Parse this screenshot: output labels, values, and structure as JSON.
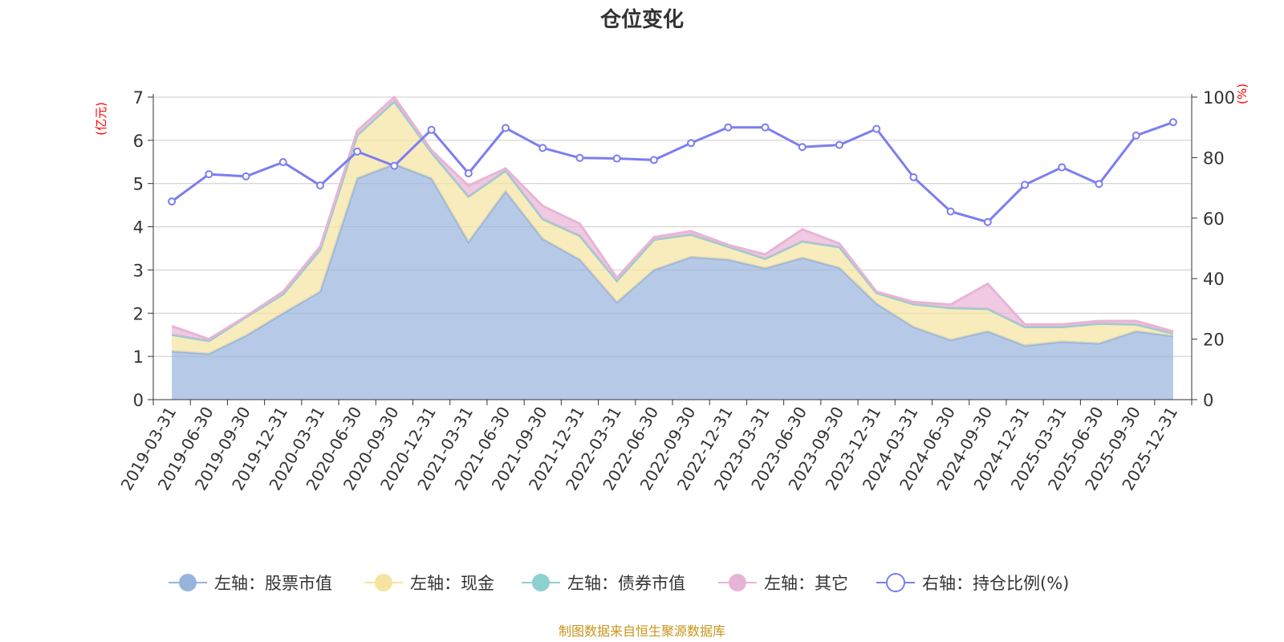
{
  "chart_data": {
    "type": "area",
    "title": "仓位变化",
    "left_axis_unit": "(亿元)",
    "right_axis_unit": "(%)",
    "left_ylim": [
      0,
      7
    ],
    "left_yticks": [
      0,
      1,
      2,
      3,
      4,
      5,
      6,
      7
    ],
    "right_ylim": [
      0,
      100
    ],
    "right_yticks": [
      0,
      20,
      40,
      60,
      80,
      100
    ],
    "categories": [
      "2019-03-31",
      "2019-06-30",
      "2019-09-30",
      "2019-12-31",
      "2020-03-31",
      "2020-06-30",
      "2020-09-30",
      "2020-12-31",
      "2021-03-31",
      "2021-06-30",
      "2021-09-30",
      "2021-12-31",
      "2022-03-31",
      "2022-06-30",
      "2022-09-30",
      "2022-12-31",
      "2023-03-31",
      "2023-06-30",
      "2023-09-30",
      "2023-12-31",
      "2024-03-31",
      "2024-06-30",
      "2024-09-30",
      "2024-12-31",
      "2025-03-31",
      "2025-06-30",
      "2025-09-30",
      "2025-12-31"
    ],
    "series": [
      {
        "name": "左轴：股票市值",
        "axis": "left",
        "kind": "stacked-area",
        "color": "#97b4dd",
        "values": [
          1.12,
          1.06,
          1.48,
          2.0,
          2.5,
          5.12,
          5.45,
          5.12,
          3.65,
          4.82,
          3.72,
          3.24,
          2.25,
          3.0,
          3.3,
          3.24,
          3.04,
          3.28,
          3.05,
          2.22,
          1.68,
          1.38,
          1.58,
          1.25,
          1.34,
          1.3,
          1.58,
          1.47
        ]
      },
      {
        "name": "左轴：现金",
        "axis": "left",
        "kind": "stacked-area",
        "color": "#f5e3a0",
        "values": [
          0.38,
          0.3,
          0.43,
          0.44,
          0.97,
          1.0,
          1.45,
          0.6,
          1.05,
          0.48,
          0.46,
          0.55,
          0.5,
          0.7,
          0.52,
          0.3,
          0.22,
          0.38,
          0.48,
          0.25,
          0.53,
          0.74,
          0.52,
          0.43,
          0.34,
          0.46,
          0.16,
          0.06
        ]
      },
      {
        "name": "左轴：债券市值",
        "axis": "left",
        "kind": "stacked-area",
        "color": "#8ecfd0",
        "values": [
          0,
          0,
          0,
          0,
          0,
          0,
          0,
          0,
          0,
          0,
          0,
          0,
          0,
          0,
          0,
          0,
          0,
          0,
          0,
          0,
          0,
          0,
          0,
          0,
          0,
          0,
          0,
          0
        ]
      },
      {
        "name": "左轴：其它",
        "axis": "left",
        "kind": "stacked-area",
        "color": "#e8b4d6",
        "values": [
          0.2,
          0.04,
          0.02,
          0.06,
          0.07,
          0.1,
          0.1,
          0.05,
          0.25,
          0.05,
          0.3,
          0.28,
          0.07,
          0.06,
          0.08,
          0.04,
          0.1,
          0.28,
          0.08,
          0.03,
          0.05,
          0.08,
          0.58,
          0.06,
          0.06,
          0.06,
          0.08,
          0.05
        ]
      },
      {
        "name": "右轴：持仓比例(%)",
        "axis": "right",
        "kind": "line",
        "color": "#7b7ef0",
        "values": [
          65.5,
          74.5,
          73.8,
          78.5,
          70.8,
          82,
          77.3,
          89.2,
          74.8,
          89.8,
          83.2,
          79.9,
          79.7,
          79.2,
          84.8,
          90,
          90,
          83.5,
          84.2,
          89.5,
          73.5,
          62.2,
          58.7,
          71,
          76.8,
          71.3,
          87.3,
          91.7
        ]
      }
    ],
    "legend_position": "bottom-center",
    "grid": true
  },
  "source_note": "制图数据来自恒生聚源数据库"
}
